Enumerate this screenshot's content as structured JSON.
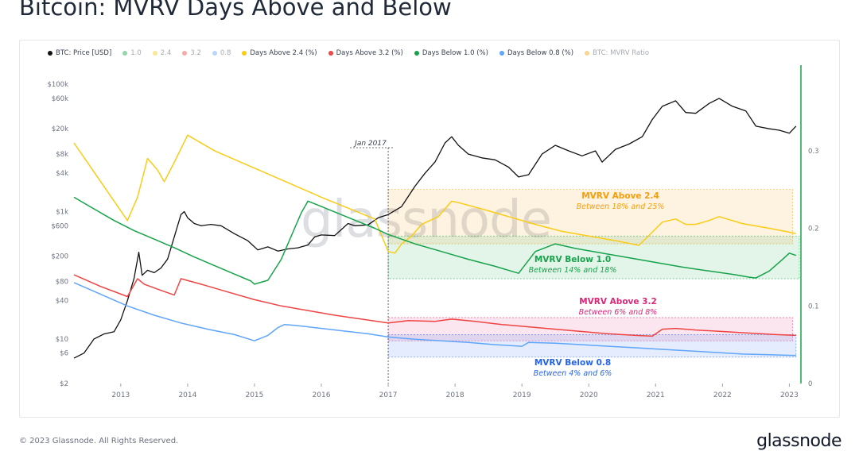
{
  "title": "Bitcoin: MVRV Days Above and Below",
  "legend": [
    {
      "label": "BTC: Price [USD]",
      "color": "#111111",
      "faded": false
    },
    {
      "label": "1.0",
      "color": "#16a34a",
      "faded": true
    },
    {
      "label": "2.4",
      "color": "#facc15",
      "faded": true
    },
    {
      "label": "3.2",
      "color": "#ef4444",
      "faded": true
    },
    {
      "label": "0.8",
      "color": "#60a5fa",
      "faded": true
    },
    {
      "label": "Days Above 2.4 (%)",
      "color": "#facc15",
      "faded": false
    },
    {
      "label": "Days Above 3.2 (%)",
      "color": "#ef4444",
      "faded": false
    },
    {
      "label": "Days Below 1.0 (%)",
      "color": "#16a34a",
      "faded": false
    },
    {
      "label": "Days Below 0.8 (%)",
      "color": "#60a5fa",
      "faded": false
    },
    {
      "label": "BTC: MVRV Ratio",
      "color": "#f59e0b",
      "faded": true
    }
  ],
  "watermark": "glassnode",
  "footer": "© 2023 Glassnode. All Rights Reserved.",
  "brand": "glassnode",
  "chart_data": {
    "type": "line",
    "y_left_scale": "log",
    "y_left_ticks": [
      "$2",
      "$6",
      "$10",
      "$40",
      "$80",
      "$200",
      "$600",
      "$1k",
      "$4k",
      "$8k",
      "$20k",
      "$60k",
      "$100k"
    ],
    "y_left_tick_values": [
      2,
      6,
      10,
      40,
      80,
      200,
      600,
      1000,
      4000,
      8000,
      20000,
      60000,
      100000
    ],
    "y_left_range": [
      2,
      150000
    ],
    "y_right_ticks": [
      "0",
      "0.1",
      "0.2",
      "0.3"
    ],
    "y_right_tick_values": [
      0,
      0.1,
      0.2,
      0.3
    ],
    "y_right_range": [
      0,
      0.4
    ],
    "x_range": [
      2012.3,
      2023.15
    ],
    "x_ticks": [
      "2013",
      "2014",
      "2015",
      "2016",
      "2017",
      "2018",
      "2019",
      "2020",
      "2021",
      "2022",
      "2023"
    ],
    "x_tick_values": [
      2013,
      2014,
      2015,
      2016,
      2017,
      2018,
      2019,
      2020,
      2021,
      2022,
      2023
    ],
    "annotation": {
      "label": "Jan 2017",
      "x": 2017.0
    },
    "bands": [
      {
        "label": "MVRV Above 2.4",
        "sublabel": "Between 18% and 25%",
        "low": 0.18,
        "high": 0.25,
        "color": "#f59e0b",
        "text_color": "#f59e0b",
        "x_start": 2017.0,
        "x_end": 2023.05
      },
      {
        "label": "MVRV Below 1.0",
        "sublabel": "Between 14% and 18%",
        "low": 0.135,
        "high": 0.19,
        "color": "#16a34a",
        "text_color": "#16a34a",
        "x_start": 2017.0,
        "x_end": 2023.15
      },
      {
        "label": "MVRV Above 3.2",
        "sublabel": "Between 6% and 8%",
        "low": 0.055,
        "high": 0.085,
        "color": "#db2777",
        "text_color": "#db2777",
        "x_start": 2017.0,
        "x_end": 2023.05
      },
      {
        "label": "MVRV Below 0.8",
        "sublabel": "Between 4% and 6%",
        "low": 0.034,
        "high": 0.063,
        "color": "#2563eb",
        "text_color": "#2563eb",
        "x_start": 2017.0,
        "x_end": 2023.1
      }
    ],
    "series": [
      {
        "name": "BTC: Price [USD]",
        "axis": "left",
        "color": "#111111",
        "x": [
          2012.3,
          2012.45,
          2012.6,
          2012.75,
          2012.9,
          2013.0,
          2013.1,
          2013.2,
          2013.27,
          2013.32,
          2013.4,
          2013.5,
          2013.6,
          2013.7,
          2013.8,
          2013.9,
          2013.95,
          2014.0,
          2014.1,
          2014.2,
          2014.35,
          2014.5,
          2014.7,
          2014.9,
          2015.05,
          2015.2,
          2015.35,
          2015.5,
          2015.65,
          2015.8,
          2015.9,
          2016.0,
          2016.2,
          2016.4,
          2016.5,
          2016.7,
          2016.85,
          2017.0,
          2017.2,
          2017.4,
          2017.55,
          2017.7,
          2017.85,
          2017.95,
          2018.05,
          2018.2,
          2018.4,
          2018.6,
          2018.8,
          2018.95,
          2019.1,
          2019.3,
          2019.5,
          2019.7,
          2019.9,
          2020.1,
          2020.2,
          2020.4,
          2020.6,
          2020.8,
          2020.95,
          2021.1,
          2021.3,
          2021.45,
          2021.6,
          2021.8,
          2021.95,
          2022.15,
          2022.35,
          2022.5,
          2022.7,
          2022.85,
          2023.0,
          2023.1
        ],
        "y": [
          5,
          6,
          10,
          12,
          13,
          20,
          40,
          90,
          230,
          100,
          120,
          110,
          130,
          180,
          400,
          900,
          1000,
          800,
          650,
          600,
          630,
          600,
          450,
          350,
          250,
          280,
          240,
          260,
          270,
          300,
          400,
          430,
          420,
          650,
          600,
          620,
          800,
          900,
          1200,
          2500,
          4000,
          6000,
          12000,
          15000,
          11000,
          8000,
          7000,
          6500,
          5000,
          3500,
          3800,
          8000,
          11000,
          9000,
          7500,
          9000,
          6000,
          9500,
          11500,
          15000,
          28000,
          45000,
          55000,
          36000,
          35000,
          50000,
          60000,
          45000,
          38000,
          22000,
          20000,
          19000,
          17000,
          22000
        ]
      },
      {
        "name": "Days Above 2.4 (%)",
        "axis": "right",
        "color": "#facc15",
        "x": [
          2012.3,
          2013.1,
          2013.25,
          2013.4,
          2013.55,
          2013.65,
          2013.8,
          2014.0,
          2014.4,
          2014.8,
          2015.2,
          2015.6,
          2016.0,
          2016.4,
          2016.8,
          2017.0,
          2017.1,
          2017.2,
          2017.35,
          2017.5,
          2017.75,
          2017.95,
          2018.05,
          2018.4,
          2018.8,
          2019.2,
          2019.6,
          2020.0,
          2020.4,
          2020.75,
          2020.95,
          2021.1,
          2021.3,
          2021.45,
          2021.6,
          2021.8,
          2021.95,
          2022.3,
          2022.7,
          2023.0,
          2023.1
        ],
        "y": [
          0.31,
          0.21,
          0.24,
          0.29,
          0.275,
          0.26,
          0.285,
          0.32,
          0.3,
          0.285,
          0.27,
          0.255,
          0.24,
          0.226,
          0.212,
          0.17,
          0.168,
          0.18,
          0.19,
          0.205,
          0.215,
          0.235,
          0.233,
          0.225,
          0.215,
          0.205,
          0.196,
          0.19,
          0.184,
          0.178,
          0.195,
          0.208,
          0.212,
          0.205,
          0.205,
          0.21,
          0.215,
          0.206,
          0.2,
          0.195,
          0.193
        ]
      },
      {
        "name": "Days Below 1.0 (%)",
        "axis": "right",
        "color": "#16a34a",
        "x": [
          2012.3,
          2012.6,
          2012.9,
          2013.2,
          2013.5,
          2013.8,
          2014.1,
          2014.4,
          2014.7,
          2014.95,
          2015.0,
          2015.2,
          2015.4,
          2015.6,
          2015.7,
          2015.8,
          2016.0,
          2016.4,
          2016.8,
          2017.0,
          2017.4,
          2017.8,
          2018.2,
          2018.6,
          2018.95,
          2019.2,
          2019.5,
          2019.8,
          2020.2,
          2020.6,
          2021.0,
          2021.4,
          2021.8,
          2022.2,
          2022.4,
          2022.5,
          2022.7,
          2022.9,
          2023.0,
          2023.1
        ],
        "y": [
          0.24,
          0.225,
          0.21,
          0.197,
          0.186,
          0.175,
          0.163,
          0.152,
          0.141,
          0.132,
          0.128,
          0.133,
          0.16,
          0.2,
          0.22,
          0.235,
          0.228,
          0.214,
          0.2,
          0.192,
          0.18,
          0.17,
          0.16,
          0.151,
          0.142,
          0.17,
          0.18,
          0.174,
          0.168,
          0.162,
          0.156,
          0.15,
          0.145,
          0.14,
          0.137,
          0.136,
          0.145,
          0.16,
          0.168,
          0.165
        ]
      },
      {
        "name": "Days Above 3.2 (%)",
        "axis": "right",
        "color": "#ef4444",
        "x": [
          2012.3,
          2012.7,
          2013.1,
          2013.25,
          2013.35,
          2013.6,
          2013.8,
          2013.9,
          2014.2,
          2014.6,
          2015.0,
          2015.4,
          2015.8,
          2016.2,
          2016.6,
          2017.0,
          2017.3,
          2017.7,
          2017.95,
          2018.3,
          2018.7,
          2019.1,
          2019.5,
          2019.9,
          2020.3,
          2020.7,
          2020.95,
          2021.1,
          2021.3,
          2021.6,
          2022.0,
          2022.4,
          2022.8,
          2023.1
        ],
        "y": [
          0.14,
          0.125,
          0.112,
          0.135,
          0.128,
          0.12,
          0.114,
          0.135,
          0.128,
          0.118,
          0.108,
          0.1,
          0.094,
          0.088,
          0.083,
          0.078,
          0.081,
          0.08,
          0.083,
          0.08,
          0.076,
          0.073,
          0.07,
          0.067,
          0.064,
          0.062,
          0.061,
          0.07,
          0.071,
          0.069,
          0.067,
          0.065,
          0.063,
          0.062
        ]
      },
      {
        "name": "Days Below 0.8 (%)",
        "axis": "right",
        "color": "#60a5fa",
        "x": [
          2012.3,
          2012.7,
          2013.1,
          2013.5,
          2013.9,
          2014.3,
          2014.7,
          2015.0,
          2015.2,
          2015.35,
          2015.45,
          2015.6,
          2015.9,
          2016.3,
          2016.7,
          2017.0,
          2017.4,
          2017.8,
          2018.2,
          2018.6,
          2019.0,
          2019.1,
          2019.5,
          2019.9,
          2020.3,
          2020.7,
          2021.1,
          2021.5,
          2021.9,
          2022.3,
          2022.7,
          2023.1
        ],
        "y": [
          0.13,
          0.115,
          0.1,
          0.088,
          0.078,
          0.07,
          0.063,
          0.055,
          0.062,
          0.072,
          0.076,
          0.075,
          0.072,
          0.068,
          0.064,
          0.06,
          0.057,
          0.055,
          0.053,
          0.05,
          0.048,
          0.053,
          0.052,
          0.05,
          0.048,
          0.046,
          0.044,
          0.042,
          0.04,
          0.038,
          0.037,
          0.036
        ]
      }
    ]
  }
}
